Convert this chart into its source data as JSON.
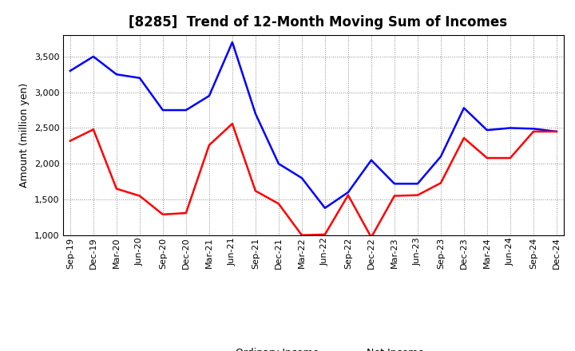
{
  "title": "[8285]  Trend of 12-Month Moving Sum of Incomes",
  "ylabel": "Amount (million yen)",
  "background_color": "#ffffff",
  "plot_bg_color": "#ffffff",
  "grid_color": "#888888",
  "xlabels": [
    "Sep-19",
    "Dec-19",
    "Mar-20",
    "Jun-20",
    "Sep-20",
    "Dec-20",
    "Mar-21",
    "Jun-21",
    "Sep-21",
    "Dec-21",
    "Mar-22",
    "Jun-22",
    "Sep-22",
    "Dec-22",
    "Mar-23",
    "Jun-23",
    "Sep-23",
    "Dec-23",
    "Mar-24",
    "Jun-24",
    "Sep-24",
    "Dec-24"
  ],
  "ordinary_income": [
    3300,
    3500,
    3250,
    3200,
    2750,
    2750,
    2950,
    3700,
    2700,
    2000,
    1800,
    1380,
    1600,
    2050,
    1720,
    1720,
    2100,
    2780,
    2470,
    2500,
    2490,
    2450
  ],
  "net_income": [
    2320,
    2480,
    1650,
    1550,
    1290,
    1310,
    2260,
    2560,
    1620,
    1440,
    1000,
    1010,
    1560,
    970,
    1550,
    1560,
    1730,
    2360,
    2080,
    2080,
    2450,
    2450
  ],
  "ylim": [
    1000,
    3800
  ],
  "yticks": [
    1000,
    1500,
    2000,
    2500,
    3000,
    3500
  ],
  "ordinary_color": "#0000ff",
  "net_color": "#ff0000",
  "line_width": 1.8,
  "title_fontsize": 12,
  "legend_fontsize": 9,
  "tick_fontsize": 8,
  "ylabel_fontsize": 9
}
